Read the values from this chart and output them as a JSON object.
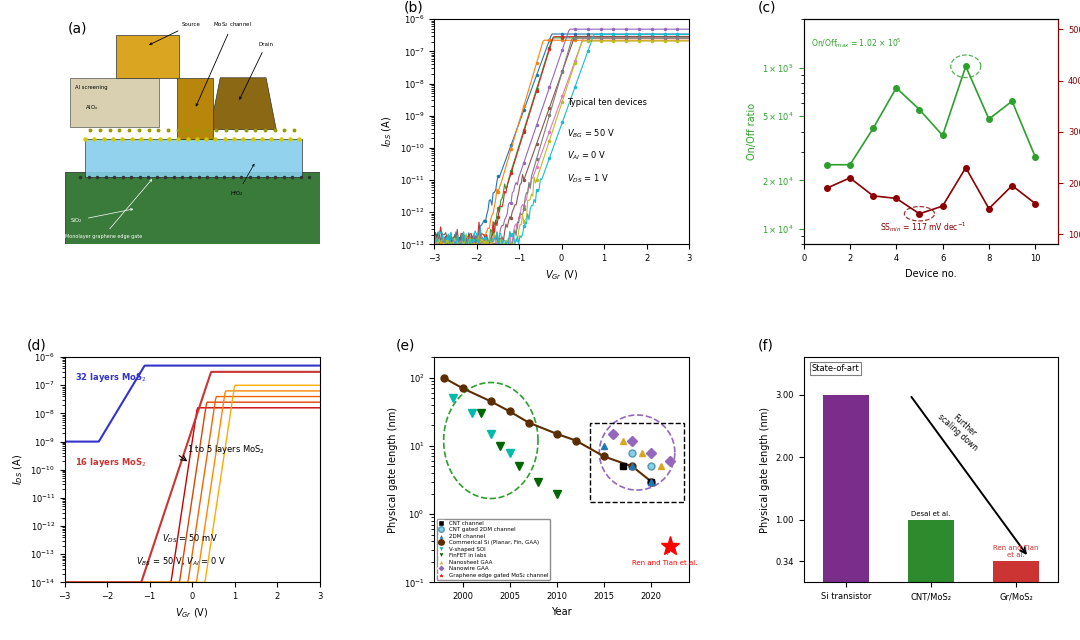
{
  "panel_a": {
    "label": "(a)",
    "annotations": [
      "Source",
      "MoS₂ channel",
      "Drain",
      "Al screening",
      "AlOₓ",
      "SiO₂",
      "HfO₂",
      "Monolayer graphene edge gate"
    ]
  },
  "panel_b": {
    "label": "(b)",
    "xlabel": "$V_{Gr}$ (V)",
    "ylabel": "$I_{DS}$ (A)",
    "annotation": "Typical ten devices",
    "params": [
      "$V_{BG}$ = 50 V",
      "$V_{Al}$ = 0 V",
      "$V_{DS}$ = 1 V"
    ],
    "xlim": [
      -3.0,
      3.0
    ],
    "colors": [
      "#1f77b4",
      "#ff7f0e",
      "#2ca02c",
      "#d62728",
      "#9467bd",
      "#8c564b",
      "#e377c2",
      "#7f7f7f",
      "#bcbd22",
      "#17becf"
    ]
  },
  "panel_c": {
    "label": "(c)",
    "xlabel": "Device no.",
    "ylabel_left": "On/Off ratio",
    "ylabel_right": "SS (mV dec$^{-1}$)",
    "x": [
      1,
      2,
      3,
      4,
      5,
      6,
      7,
      8,
      9,
      10
    ],
    "on_off": [
      25000,
      25000,
      42000,
      75000,
      55000,
      38000,
      102000,
      48000,
      62000,
      28000
    ],
    "ss": [
      190,
      210,
      175,
      170,
      140,
      155,
      230,
      150,
      195,
      160
    ],
    "on_off_max_idx": 6,
    "ss_min_idx": 4,
    "color_on_off": "#2ca02c",
    "color_ss": "#8B0000"
  },
  "panel_d": {
    "label": "(d)",
    "xlabel": "$V_{Gr}$ (V)",
    "ylabel": "$I_{DS}$ (A)",
    "label_32": "32 layers MoS$_2$",
    "label_16": "16 layers MoS$_2$",
    "label_15": "1 to 5 layers MoS$_2$",
    "color_32": "#3333cc",
    "color_16": "#cc3333",
    "colors_15": [
      "#cc0000",
      "#dd4400",
      "#ee6600",
      "#ff8800",
      "#ffaa00"
    ]
  },
  "panel_e": {
    "label": "(e)",
    "xlabel": "Year",
    "ylabel": "Physical gate length (nm)",
    "commercial_si_x": [
      1998,
      2000,
      2003,
      2005,
      2007,
      2010,
      2012,
      2015,
      2018,
      2020
    ],
    "commercial_si_y": [
      100,
      70,
      45,
      32,
      22,
      15,
      12,
      7,
      5,
      3
    ],
    "ren_tian_label": "Ren and Tian et al.",
    "legend_entries": [
      "CNT channel",
      "CNT gated 2DM channel",
      "2DM channel",
      "Commerical Si (Planar, Fin, GAA)",
      "V-shaped SOI",
      "FinFET in labs",
      "Nanosheet GAA",
      "Nanowire GAA",
      "Graphene edge gated MoS₂ channel"
    ]
  },
  "panel_f": {
    "label": "(f)",
    "ylabel": "Physical gate length (nm)",
    "categories": [
      "Si transistor",
      "CNT/MoS₂",
      "Gr/MoS₂"
    ],
    "values": [
      3.0,
      1.0,
      0.34
    ],
    "colors": [
      "#7b2d8b",
      "#2d8b2d",
      "#cc3333"
    ],
    "state_of_art_label": "State-of-art",
    "desai_label": "Desai et al.",
    "ren_tian_label": "Ren and Tian\net al.",
    "arrow_label": "Further\nscaling down"
  }
}
